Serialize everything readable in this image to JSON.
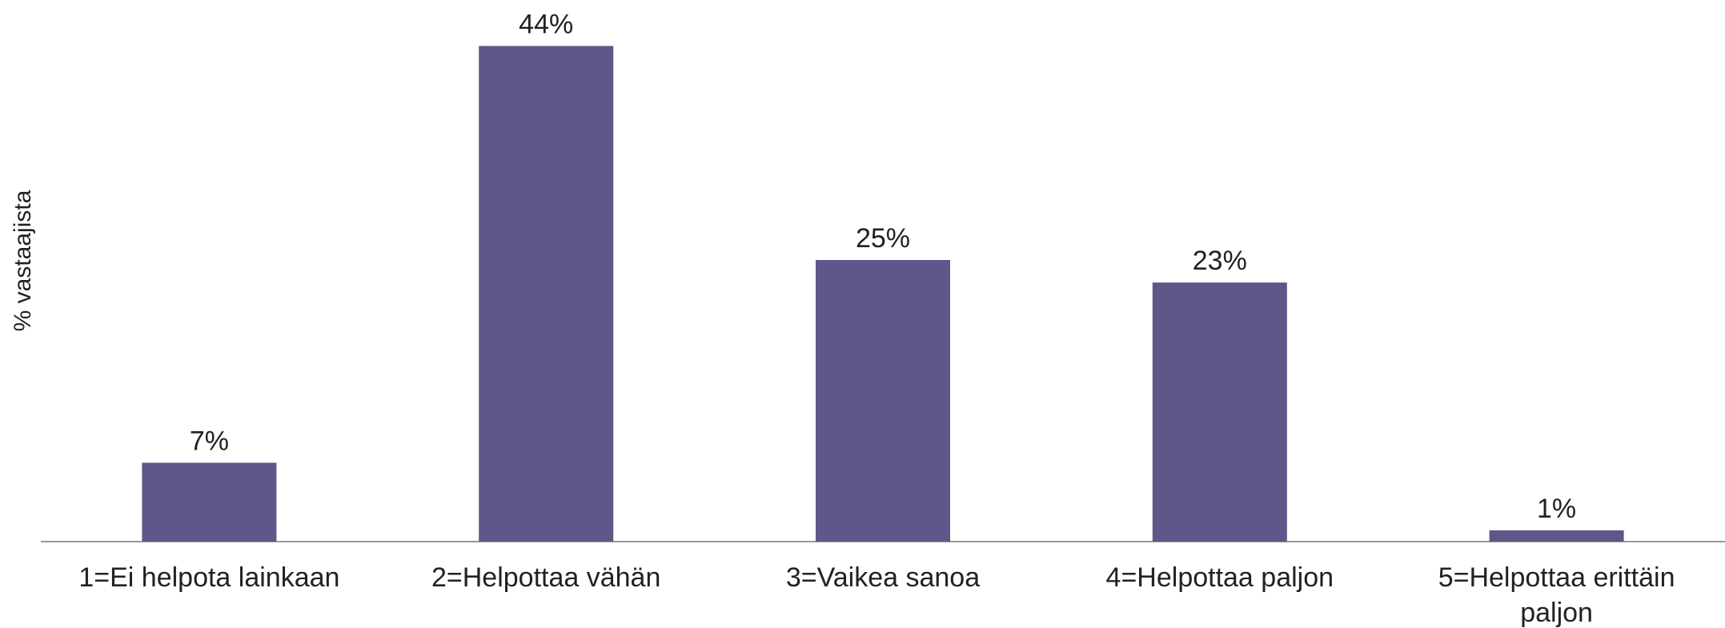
{
  "chart_data": {
    "type": "bar",
    "y_axis_label": "% vastaajista",
    "categories": [
      "1=Ei helpota lainkaan",
      "2=Helpottaa vähän",
      "3=Vaikea sanoa",
      "4=Helpottaa paljon",
      "5=Helpottaa erittäin paljon"
    ],
    "values": [
      7,
      44,
      25,
      23,
      1
    ],
    "value_labels": [
      "7%",
      "44%",
      "25%",
      "23%",
      "1%"
    ],
    "color": "#5f5689"
  }
}
